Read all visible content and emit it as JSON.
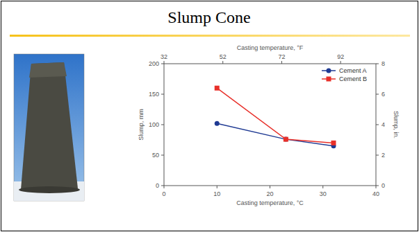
{
  "chart_data": {
    "type": "line",
    "title": "Slump Cone",
    "x_label": "Casting temperature, °C",
    "x2_label": "Casting temperature, °F",
    "y_label": "Slump, mm",
    "y2_label": "Slump, in.",
    "x": [
      10,
      23,
      32
    ],
    "series": [
      {
        "name": "Cement A",
        "color": "#1f3a93",
        "marker": "circle",
        "values": [
          102,
          76,
          65
        ]
      },
      {
        "name": "Cement B",
        "color": "#e8302a",
        "marker": "square",
        "values": [
          160,
          76,
          70
        ]
      }
    ],
    "xlim": [
      0,
      40
    ],
    "xticks": [
      0,
      10,
      20,
      30,
      40
    ],
    "x2lim": [
      32,
      104
    ],
    "x2ticks": [
      32,
      52,
      72,
      92
    ],
    "ylim": [
      0,
      200
    ],
    "yticks": [
      0,
      50,
      100,
      150,
      200
    ],
    "y2lim": [
      0,
      8
    ],
    "y2ticks": [
      0,
      2,
      4,
      6,
      8
    ],
    "legend": "top-right",
    "grid": false
  }
}
